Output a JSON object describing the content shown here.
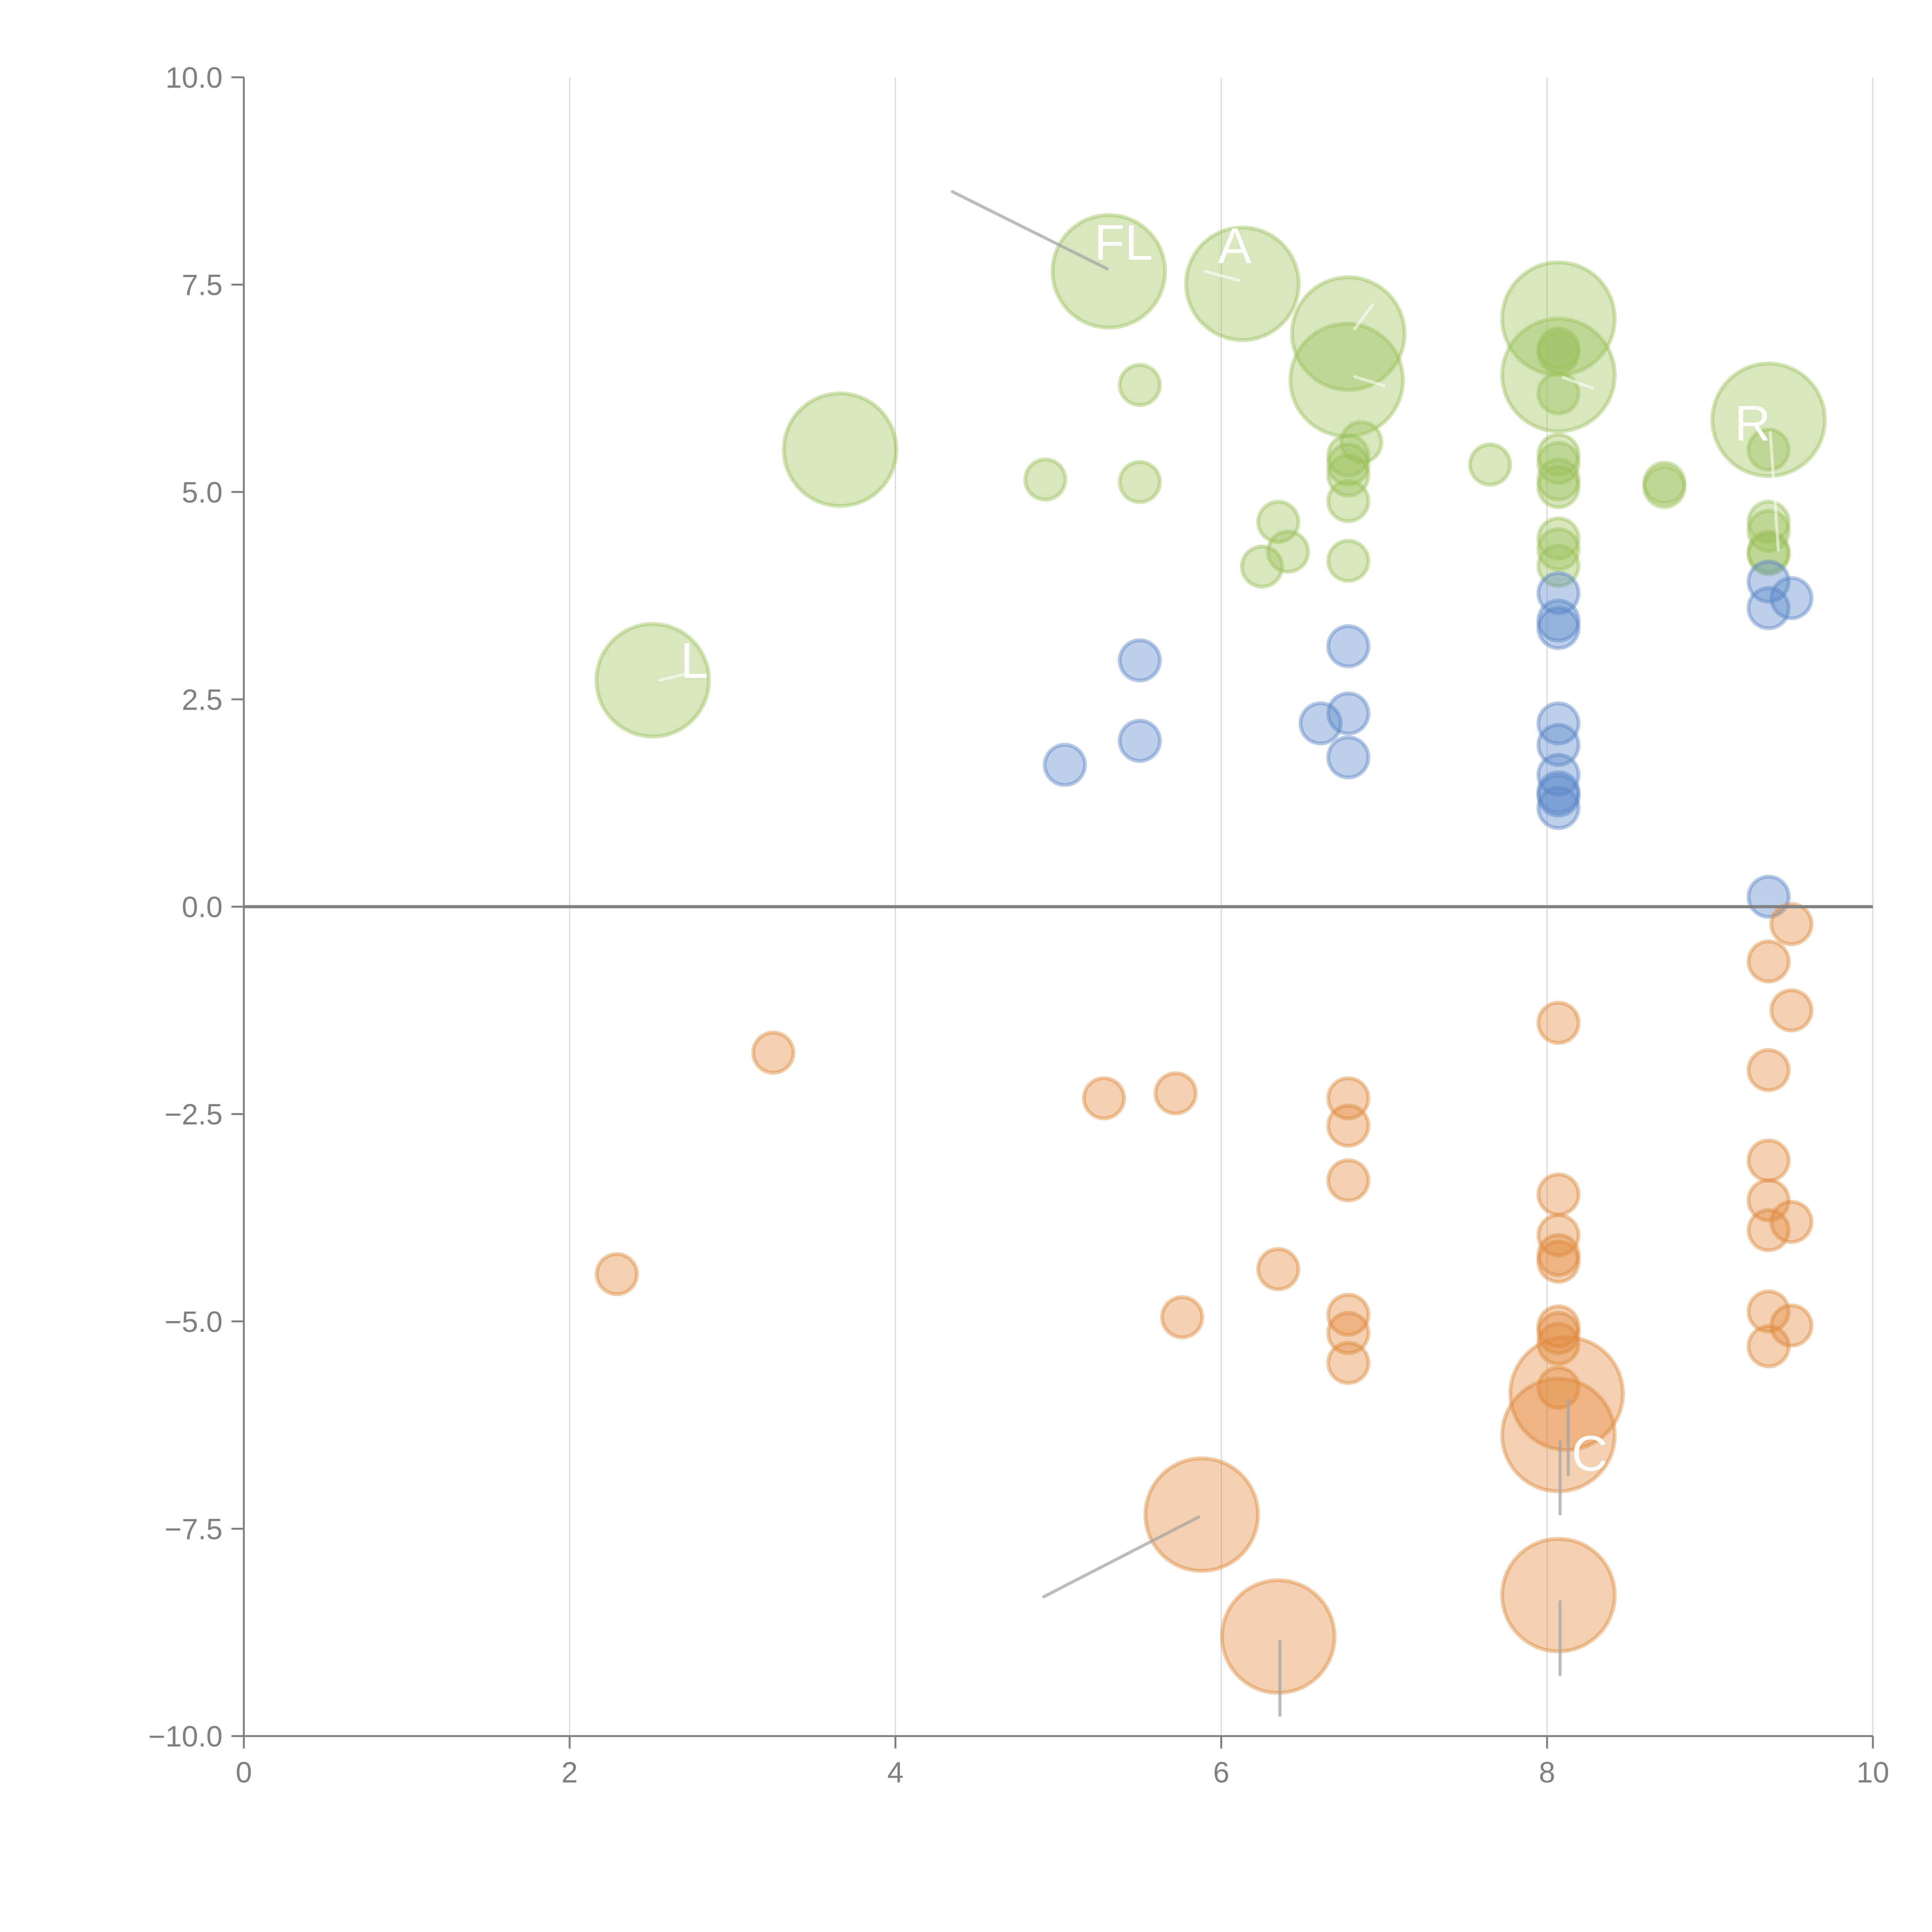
{
  "chart_data": {
    "type": "scatter",
    "subtype": "bubble",
    "title": "",
    "xlabel": "",
    "ylabel": "",
    "xlim": [
      0,
      10
    ],
    "ylim": [
      -10,
      10
    ],
    "x_ticks": [
      "0",
      "2",
      "4",
      "6",
      "8",
      "10"
    ],
    "x_tick_values": [
      0,
      2,
      4,
      6,
      8,
      10
    ],
    "y_ticks": [
      "10.0",
      "7.5",
      "5.0",
      "2.5",
      "0.0",
      "−2.5",
      "−5.0",
      "−7.5",
      "−10.0"
    ],
    "y_tick_values": [
      10,
      7.5,
      5,
      2.5,
      0,
      -2.5,
      -5,
      -7.5,
      -10
    ],
    "grid": "vertical",
    "zero_line": true,
    "legend": "none",
    "size_units": "relative bubble magnitude",
    "colors": {
      "green": "#9cc05b",
      "blue": "#5b87c7",
      "orange": "#e08a3c",
      "axis": "#808080",
      "grid": "#d9d9d9",
      "label": "#ffffff",
      "leader": "#a6a6a6"
    },
    "series": [
      {
        "name": "green",
        "color_key": "green",
        "points": [
          {
            "x": 5.31,
            "y": 7.66,
            "size": 2.8,
            "label": "FL"
          },
          {
            "x": 6.13,
            "y": 7.51,
            "size": 2.8,
            "label": "A"
          },
          {
            "x": 6.78,
            "y": 6.91,
            "size": 2.8,
            "label": ""
          },
          {
            "x": 6.77,
            "y": 6.35,
            "size": 2.8,
            "label": ""
          },
          {
            "x": 8.07,
            "y": 7.09,
            "size": 2.8,
            "label": ""
          },
          {
            "x": 8.07,
            "y": 6.41,
            "size": 2.8,
            "label": ""
          },
          {
            "x": 9.36,
            "y": 5.87,
            "size": 2.8,
            "label": "R"
          },
          {
            "x": 3.66,
            "y": 5.51,
            "size": 2.8,
            "label": ""
          },
          {
            "x": 2.51,
            "y": 2.73,
            "size": 2.8,
            "label": "L"
          },
          {
            "x": 5.5,
            "y": 6.29,
            "size": 1
          },
          {
            "x": 4.92,
            "y": 5.15,
            "size": 1
          },
          {
            "x": 5.5,
            "y": 5.12,
            "size": 1
          },
          {
            "x": 6.35,
            "y": 4.64,
            "size": 1
          },
          {
            "x": 6.25,
            "y": 4.1,
            "size": 1
          },
          {
            "x": 6.41,
            "y": 4.28,
            "size": 1
          },
          {
            "x": 6.86,
            "y": 5.6,
            "size": 1
          },
          {
            "x": 6.78,
            "y": 5.44,
            "size": 1
          },
          {
            "x": 6.78,
            "y": 5.33,
            "size": 1
          },
          {
            "x": 6.78,
            "y": 5.2,
            "size": 1
          },
          {
            "x": 6.78,
            "y": 4.89,
            "size": 1
          },
          {
            "x": 6.78,
            "y": 4.17,
            "size": 1
          },
          {
            "x": 7.65,
            "y": 5.33,
            "size": 1
          },
          {
            "x": 8.07,
            "y": 6.73,
            "size": 1
          },
          {
            "x": 8.07,
            "y": 6.68,
            "size": 1
          },
          {
            "x": 8.07,
            "y": 6.19,
            "size": 1
          },
          {
            "x": 8.07,
            "y": 5.45,
            "size": 1
          },
          {
            "x": 8.07,
            "y": 5.35,
            "size": 1
          },
          {
            "x": 8.07,
            "y": 5.15,
            "size": 1
          },
          {
            "x": 8.07,
            "y": 5.06,
            "size": 1
          },
          {
            "x": 8.07,
            "y": 4.44,
            "size": 1
          },
          {
            "x": 8.07,
            "y": 4.31,
            "size": 1
          },
          {
            "x": 8.07,
            "y": 4.11,
            "size": 1
          },
          {
            "x": 8.72,
            "y": 5.11,
            "size": 1
          },
          {
            "x": 8.72,
            "y": 5.06,
            "size": 1
          },
          {
            "x": 9.36,
            "y": 5.51,
            "size": 1
          },
          {
            "x": 9.36,
            "y": 4.64,
            "size": 1
          },
          {
            "x": 9.36,
            "y": 4.53,
            "size": 1
          },
          {
            "x": 9.36,
            "y": 4.28,
            "size": 1
          },
          {
            "x": 9.36,
            "y": 4.25,
            "size": 1
          }
        ]
      },
      {
        "name": "blue",
        "color_key": "blue",
        "points": [
          {
            "x": 5.5,
            "y": 2.97,
            "size": 1
          },
          {
            "x": 5.5,
            "y": 2.0,
            "size": 1
          },
          {
            "x": 5.04,
            "y": 1.71,
            "size": 1
          },
          {
            "x": 6.61,
            "y": 2.21,
            "size": 1
          },
          {
            "x": 6.78,
            "y": 3.14,
            "size": 1
          },
          {
            "x": 6.78,
            "y": 2.33,
            "size": 1
          },
          {
            "x": 6.78,
            "y": 1.8,
            "size": 1
          },
          {
            "x": 8.07,
            "y": 3.78,
            "size": 1
          },
          {
            "x": 8.07,
            "y": 3.45,
            "size": 1
          },
          {
            "x": 8.07,
            "y": 3.36,
            "size": 1
          },
          {
            "x": 8.07,
            "y": 2.21,
            "size": 1
          },
          {
            "x": 8.07,
            "y": 1.95,
            "size": 1
          },
          {
            "x": 8.07,
            "y": 1.59,
            "size": 1
          },
          {
            "x": 8.07,
            "y": 1.38,
            "size": 1
          },
          {
            "x": 8.07,
            "y": 1.34,
            "size": 1
          },
          {
            "x": 8.07,
            "y": 1.19,
            "size": 1
          },
          {
            "x": 9.36,
            "y": 3.92,
            "size": 1
          },
          {
            "x": 9.36,
            "y": 3.6,
            "size": 1
          },
          {
            "x": 9.5,
            "y": 3.72,
            "size": 1
          },
          {
            "x": 9.36,
            "y": 0.12,
            "size": 1
          }
        ]
      },
      {
        "name": "orange",
        "color_key": "orange",
        "points": [
          {
            "x": 3.25,
            "y": -1.76,
            "size": 1
          },
          {
            "x": 2.29,
            "y": -4.43,
            "size": 1
          },
          {
            "x": 5.28,
            "y": -2.31,
            "size": 1
          },
          {
            "x": 5.72,
            "y": -2.25,
            "size": 1
          },
          {
            "x": 5.76,
            "y": -4.95,
            "size": 1
          },
          {
            "x": 6.35,
            "y": -4.37,
            "size": 1
          },
          {
            "x": 6.78,
            "y": -2.31,
            "size": 1
          },
          {
            "x": 6.78,
            "y": -2.64,
            "size": 1
          },
          {
            "x": 6.78,
            "y": -3.3,
            "size": 1
          },
          {
            "x": 6.78,
            "y": -4.92,
            "size": 1
          },
          {
            "x": 6.78,
            "y": -5.14,
            "size": 1
          },
          {
            "x": 6.78,
            "y": -5.5,
            "size": 1
          },
          {
            "x": 8.07,
            "y": -1.4,
            "size": 1
          },
          {
            "x": 8.07,
            "y": -3.47,
            "size": 1
          },
          {
            "x": 8.07,
            "y": -3.96,
            "size": 1
          },
          {
            "x": 8.07,
            "y": -4.2,
            "size": 1
          },
          {
            "x": 8.07,
            "y": -4.28,
            "size": 1
          },
          {
            "x": 8.07,
            "y": -5.06,
            "size": 1
          },
          {
            "x": 8.07,
            "y": -5.14,
            "size": 1
          },
          {
            "x": 8.07,
            "y": -5.27,
            "size": 1
          },
          {
            "x": 8.07,
            "y": -5.8,
            "size": 1
          },
          {
            "x": 9.36,
            "y": -0.66,
            "size": 1
          },
          {
            "x": 9.5,
            "y": -0.21,
            "size": 1
          },
          {
            "x": 9.5,
            "y": -1.25,
            "size": 1
          },
          {
            "x": 9.36,
            "y": -1.97,
            "size": 1
          },
          {
            "x": 9.36,
            "y": -3.06,
            "size": 1
          },
          {
            "x": 9.36,
            "y": -3.54,
            "size": 1
          },
          {
            "x": 9.36,
            "y": -3.9,
            "size": 1
          },
          {
            "x": 9.5,
            "y": -3.8,
            "size": 1
          },
          {
            "x": 9.36,
            "y": -4.88,
            "size": 1
          },
          {
            "x": 9.5,
            "y": -5.05,
            "size": 1
          },
          {
            "x": 9.36,
            "y": -5.3,
            "size": 1
          },
          {
            "x": 8.12,
            "y": -5.87,
            "size": 2.8,
            "label": ""
          },
          {
            "x": 8.07,
            "y": -6.37,
            "size": 2.8,
            "label": "C"
          },
          {
            "x": 5.88,
            "y": -7.33,
            "size": 2.8,
            "label": ""
          },
          {
            "x": 6.35,
            "y": -8.8,
            "size": 2.8,
            "label": ""
          },
          {
            "x": 8.07,
            "y": -8.3,
            "size": 2.8,
            "label": ""
          }
        ]
      }
    ],
    "annotations": [
      {
        "text": "FL",
        "x": 5.22,
        "y": 7.8,
        "leader_from": [
          4.35,
          8.62
        ],
        "leader_to": [
          5.3,
          7.69
        ],
        "leader_color": "leader"
      },
      {
        "text": "A",
        "x": 5.98,
        "y": 7.76,
        "leader_from": [
          6.11,
          7.55
        ],
        "leader_to": [
          5.9,
          7.66
        ],
        "leader_color": "label"
      },
      {
        "text": "R",
        "x": 9.15,
        "y": 5.62,
        "leader_from": [
          9.37,
          5.72
        ],
        "leader_to": [
          9.42,
          4.3
        ],
        "leader_color": "label"
      },
      {
        "text": "L",
        "x": 2.68,
        "y": 2.76,
        "leader_from": [
          2.55,
          2.73
        ],
        "leader_to": [
          2.7,
          2.8
        ],
        "leader_color": "label"
      },
      {
        "text": "C",
        "x": 8.15,
        "y": -6.8,
        "leader_from": [
          8.13,
          -5.95
        ],
        "leader_to": [
          8.13,
          -6.85
        ],
        "leader_color": "leader"
      },
      {
        "text": "",
        "x": 0,
        "y": 0,
        "leader_from": [
          4.91,
          -8.32
        ],
        "leader_to": [
          5.86,
          -7.36
        ],
        "leader_color": "leader"
      },
      {
        "text": "",
        "x": 0,
        "y": 0,
        "leader_from": [
          6.36,
          -8.86
        ],
        "leader_to": [
          6.36,
          -9.75
        ],
        "leader_color": "leader"
      },
      {
        "text": "",
        "x": 0,
        "y": 0,
        "leader_from": [
          8.08,
          -8.38
        ],
        "leader_to": [
          8.08,
          -9.26
        ],
        "leader_color": "leader"
      },
      {
        "text": "",
        "x": 0,
        "y": 0,
        "leader_from": [
          8.08,
          -6.45
        ],
        "leader_to": [
          8.08,
          -7.32
        ],
        "leader_color": "leader"
      },
      {
        "text": "",
        "x": 0,
        "y": 0,
        "leader_from": [
          6.82,
          6.97
        ],
        "leader_to": [
          6.93,
          7.26
        ],
        "leader_color": "label"
      },
      {
        "text": "",
        "x": 0,
        "y": 0,
        "leader_from": [
          6.82,
          6.39
        ],
        "leader_to": [
          7.0,
          6.28
        ],
        "leader_color": "label"
      },
      {
        "text": "",
        "x": 8.1,
        "y": 6.38,
        "leader_from": [
          8.1,
          6.38
        ],
        "leader_to": [
          8.28,
          6.25
        ],
        "leader_color": "label"
      }
    ]
  }
}
